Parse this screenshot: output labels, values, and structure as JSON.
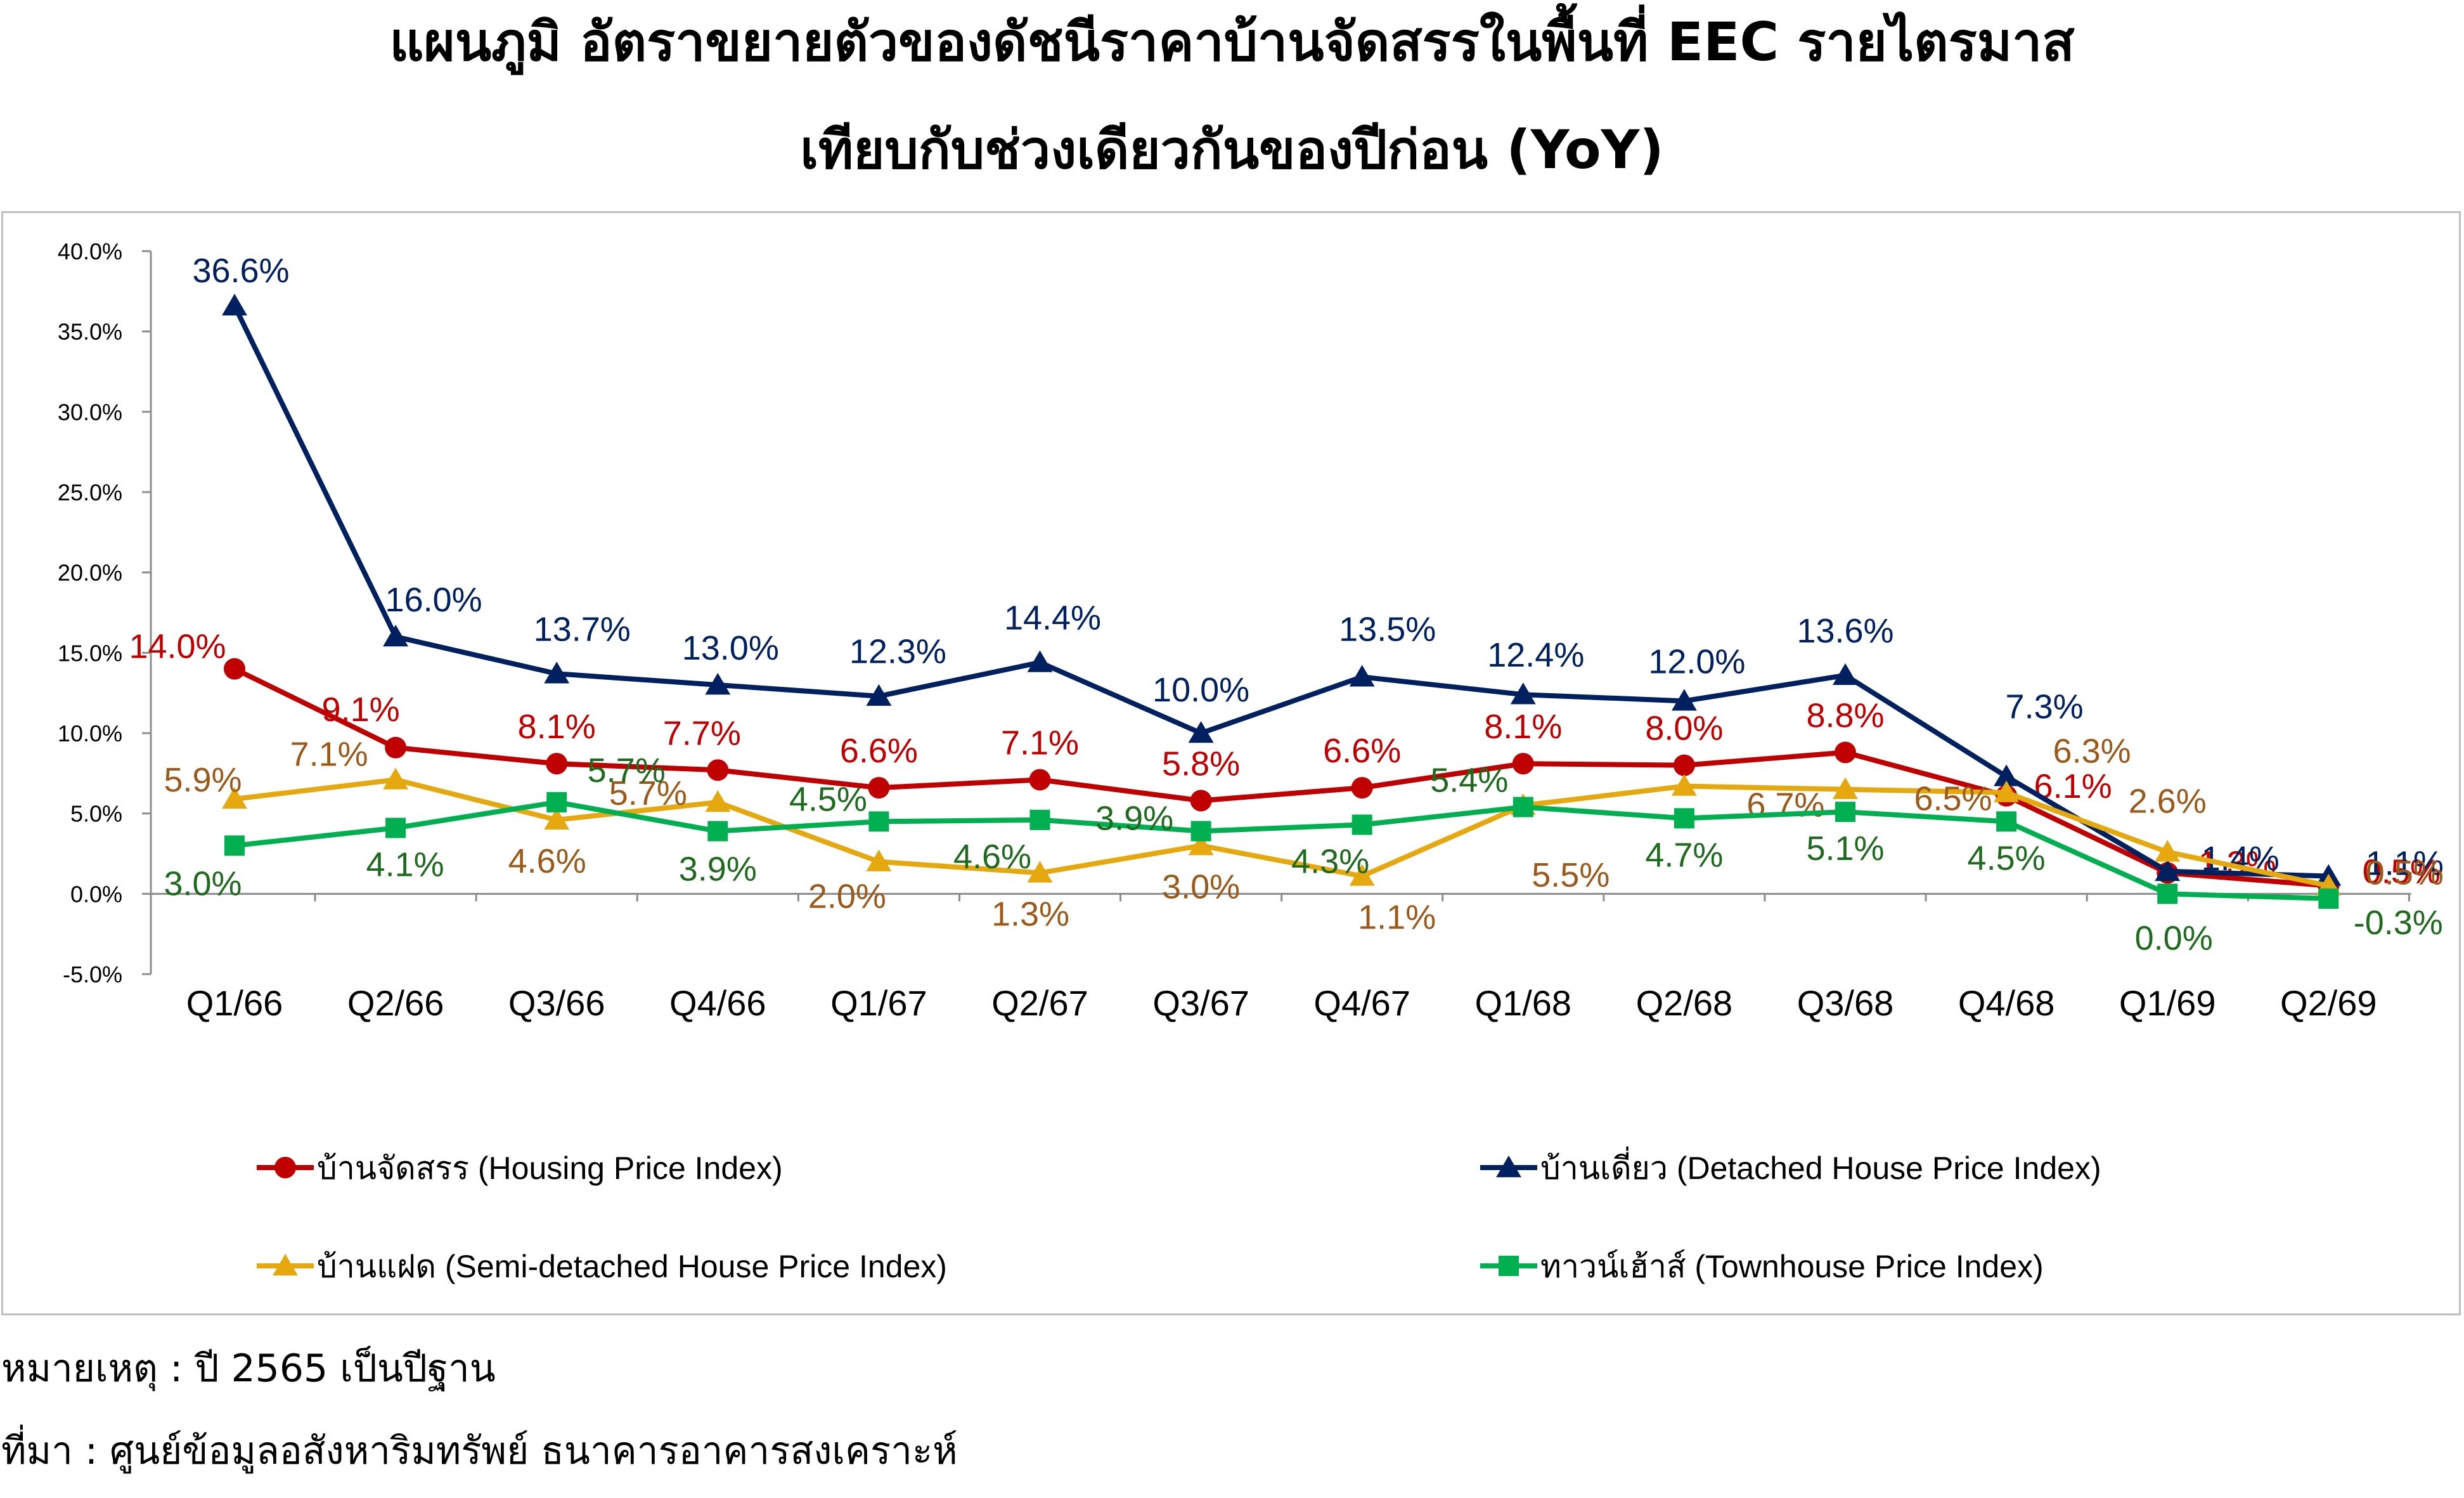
{
  "title_line1": "แผนภูมิ อัตราขยายตัวของดัชนีราคาบ้านจัดสรรในพื้นที่ EEC รายไตรมาส",
  "title_line2": "เทียบกับช่วงเดียวกันของปีก่อน (YoY)",
  "note": "หมายเหตุ : ปี 2565 เป็นปีฐาน",
  "source": "ที่มา : ศูนย์ข้อมูลอสังหาริมทรัพย์ ธนาคารอาคารสงเคราะห์",
  "chart_data": {
    "type": "line",
    "categories": [
      "Q1/66",
      "Q2/66",
      "Q3/66",
      "Q4/66",
      "Q1/67",
      "Q2/67",
      "Q3/67",
      "Q4/67",
      "Q1/68",
      "Q2/68",
      "Q3/68",
      "Q4/68",
      "Q1/69",
      "Q2/69"
    ],
    "y_ticks": [
      "40.0%",
      "35.0%",
      "30.0%",
      "25.0%",
      "20.0%",
      "15.0%",
      "10.0%",
      "5.0%",
      "0.0%",
      "-5.0%"
    ],
    "ylim": [
      -5,
      40
    ],
    "legend_position": "bottom",
    "grid": false,
    "series": [
      {
        "name": "บ้านจัดสรร (Housing Price Index)",
        "color": "#C00000",
        "marker": "circle",
        "values": [
          14.0,
          9.1,
          8.1,
          7.7,
          6.6,
          7.1,
          5.8,
          6.6,
          8.1,
          8.0,
          8.8,
          6.1,
          1.3,
          0.5
        ],
        "labels": [
          "14.0%",
          "9.1%",
          "8.1%",
          "7.7%",
          "6.6%",
          "7.1%",
          "5.8%",
          "6.6%",
          "8.1%",
          "8.0%",
          "8.8%",
          "6.1%",
          "1.3%",
          "0.5%"
        ]
      },
      {
        "name": "บ้านเดี่ยว (Detached House Price Index)",
        "color": "#002060",
        "marker": "triangle",
        "values": [
          36.6,
          16.0,
          13.7,
          13.0,
          12.3,
          14.4,
          10.0,
          13.5,
          12.4,
          12.0,
          13.6,
          7.3,
          1.4,
          1.1
        ],
        "labels": [
          "36.6%",
          "16.0%",
          "13.7%",
          "13.0%",
          "12.3%",
          "14.4%",
          "10.0%",
          "13.5%",
          "12.4%",
          "12.0%",
          "13.6%",
          "7.3%",
          "1.4%",
          "1.1%"
        ]
      },
      {
        "name": "บ้านแฝด (Semi-detached House Price Index)",
        "color": "#E5A90F",
        "label_color": "#9C5A1A",
        "marker": "triangle",
        "values": [
          5.9,
          7.1,
          4.6,
          5.7,
          2.0,
          1.3,
          3.0,
          1.1,
          5.5,
          6.7,
          6.5,
          6.3,
          2.6,
          0.5
        ],
        "labels": [
          "5.9%",
          "7.1%",
          "4.6%",
          "5.7%",
          "2.0%",
          "1.3%",
          "3.0%",
          "1.1%",
          "5.5%",
          "6.7%",
          "6.5%",
          "6.3%",
          "2.6%",
          "0.5%"
        ]
      },
      {
        "name": "ทาวน์เฮ้าส์ (Townhouse Price Index)",
        "color": "#00B050",
        "label_color": "#1E6B1E",
        "marker": "square",
        "values": [
          3.0,
          4.1,
          5.7,
          3.9,
          4.5,
          4.6,
          3.9,
          4.3,
          5.4,
          4.7,
          5.1,
          4.5,
          0.0,
          -0.3
        ],
        "labels": [
          "3.0%",
          "4.1%",
          "5.7%",
          "3.9%",
          "4.5%",
          "4.6%",
          "3.9%",
          "4.3%",
          "5.4%",
          "4.7%",
          "5.1%",
          "4.5%",
          "0.0%",
          "-0.3%"
        ]
      }
    ]
  }
}
